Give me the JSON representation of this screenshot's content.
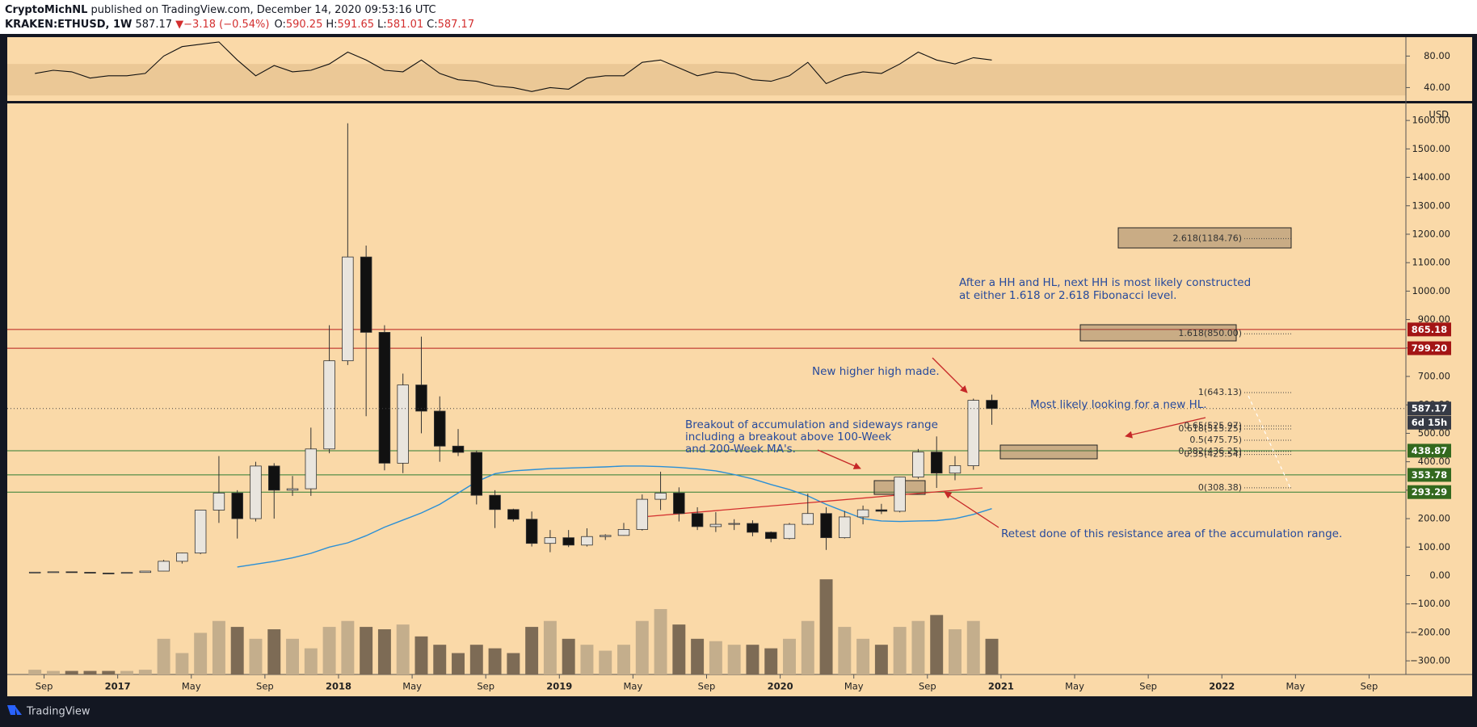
{
  "header": {
    "author": "CryptoMichNL",
    "published": "published on TradingView.com, December 14, 2020 09:53:16 UTC",
    "symbol": "KRAKEN:ETHUSD, 1W",
    "last": "587.17",
    "arrow": "▼",
    "change": "−3.18 (−0.54%)",
    "ohlc": [
      {
        "label": "O:",
        "value": "590.25"
      },
      {
        "label": "H:",
        "value": "591.65"
      },
      {
        "label": "L:",
        "value": "581.01"
      },
      {
        "label": "C:",
        "value": "587.17"
      }
    ]
  },
  "footer": {
    "brand": "TradingView"
  },
  "chart_data": {
    "type": "candlestick",
    "currency": "USD",
    "x": [
      "2016-08",
      "2016-09",
      "2016-10",
      "2016-11",
      "2016-12",
      "2017-01",
      "2017-02",
      "2017-03",
      "2017-04",
      "2017-05",
      "2017-06",
      "2017-07",
      "2017-08",
      "2017-09",
      "2017-10",
      "2017-11",
      "2017-12",
      "2018-01",
      "2018-02",
      "2018-03",
      "2018-04",
      "2018-05",
      "2018-06",
      "2018-07",
      "2018-08",
      "2018-09",
      "2018-10",
      "2018-11",
      "2018-12",
      "2019-01",
      "2019-02",
      "2019-03",
      "2019-04",
      "2019-05",
      "2019-06",
      "2019-07",
      "2019-08",
      "2019-09",
      "2019-10",
      "2019-11",
      "2019-12",
      "2020-01",
      "2020-02",
      "2020-03",
      "2020-04",
      "2020-05",
      "2020-06",
      "2020-07",
      "2020-08",
      "2020-09",
      "2020-10",
      "2020-11",
      "2020-12"
    ],
    "open": [
      11.6,
      11.8,
      13.1,
      11.3,
      8.6,
      8.0,
      10.7,
      15.5,
      50,
      79,
      230,
      290,
      200,
      385,
      300,
      305,
      445,
      755,
      1120,
      855,
      395,
      670,
      578,
      455,
      433,
      282,
      232,
      198,
      113,
      133,
      107,
      137,
      141,
      162,
      268,
      290,
      218,
      172,
      180,
      183,
      152,
      130,
      180,
      218,
      133,
      206,
      231,
      226,
      346,
      434,
      360,
      386,
      616
    ],
    "high": [
      12.5,
      13.5,
      13.3,
      11.4,
      9.0,
      11.2,
      15.5,
      55,
      80,
      230,
      420,
      300,
      400,
      395,
      350,
      520,
      880,
      1590,
      1160,
      880,
      710,
      840,
      630,
      515,
      440,
      300,
      235,
      225,
      160,
      160,
      166,
      145,
      185,
      285,
      365,
      310,
      240,
      223,
      198,
      194,
      155,
      185,
      288,
      240,
      227,
      246,
      252,
      347,
      445,
      489,
      420,
      622,
      636
    ],
    "low": [
      10.0,
      11.5,
      10.5,
      8.2,
      6.7,
      7.9,
      10.4,
      15.2,
      42,
      75,
      185,
      130,
      190,
      200,
      280,
      280,
      430,
      740,
      560,
      370,
      360,
      500,
      400,
      420,
      250,
      167,
      190,
      102,
      82,
      100,
      102,
      125,
      140,
      158,
      230,
      190,
      160,
      153,
      160,
      138,
      117,
      127,
      178,
      90,
      130,
      180,
      216,
      222,
      340,
      308,
      335,
      372,
      530
    ],
    "close": [
      11.8,
      13.1,
      11.3,
      8.6,
      8.0,
      10.7,
      15.5,
      50,
      79,
      230,
      290,
      200,
      385,
      300,
      305,
      445,
      755,
      1120,
      855,
      395,
      670,
      578,
      455,
      433,
      282,
      232,
      198,
      113,
      133,
      107,
      137,
      141,
      162,
      268,
      290,
      218,
      172,
      180,
      183,
      152,
      130,
      180,
      218,
      133,
      206,
      231,
      226,
      346,
      434,
      360,
      386,
      616,
      587.17
    ],
    "up_color": "#e9e5de",
    "down_color": "#111111",
    "volume": {
      "values": [
        4,
        3,
        3,
        3,
        3,
        3,
        4,
        30,
        18,
        35,
        45,
        40,
        30,
        38,
        30,
        22,
        40,
        45,
        40,
        38,
        42,
        32,
        25,
        18,
        25,
        22,
        18,
        40,
        45,
        30,
        25,
        20,
        25,
        45,
        55,
        42,
        30,
        28,
        25,
        25,
        22,
        30,
        45,
        80,
        40,
        30,
        25,
        40,
        45,
        50,
        38,
        45,
        30
      ],
      "lim": [
        0,
        480
      ],
      "up_color": "#c4ae8c",
      "down_color": "#7d6b55"
    },
    "ma": {
      "values": [
        null,
        null,
        null,
        null,
        null,
        null,
        null,
        null,
        null,
        null,
        null,
        30,
        40,
        50,
        62,
        78,
        100,
        115,
        140,
        170,
        195,
        220,
        250,
        290,
        330,
        358,
        368,
        372,
        376,
        378,
        380,
        382,
        385,
        385,
        383,
        380,
        375,
        368,
        355,
        340,
        320,
        302,
        280,
        250,
        225,
        200,
        192,
        190,
        192,
        193,
        200,
        215,
        235
      ],
      "color": "#2a8fd6"
    },
    "rsi": {
      "values": [
        58,
        62,
        60,
        52,
        55,
        55,
        58,
        80,
        92,
        95,
        98,
        75,
        55,
        68,
        60,
        62,
        70,
        85,
        75,
        62,
        60,
        75,
        58,
        50,
        48,
        42,
        40,
        35,
        40,
        38,
        52,
        55,
        55,
        72,
        75,
        65,
        55,
        60,
        58,
        50,
        48,
        55,
        72,
        45,
        55,
        60,
        58,
        70,
        85,
        75,
        70,
        78,
        75
      ],
      "color": "#111111",
      "ylim": [
        23,
        104
      ],
      "yticks": [
        {
          "value": 80,
          "label": "80.00"
        },
        {
          "value": 40,
          "label": "40.00"
        }
      ],
      "band": [
        30,
        70
      ],
      "band_color": "rgba(150,100,40,0.14)"
    },
    "xlim": [
      "2016-07",
      "2022-10"
    ],
    "xticks": [
      {
        "value": "2016-09",
        "label": "Sep"
      },
      {
        "value": "2017-01",
        "label": "2017"
      },
      {
        "value": "2017-05",
        "label": "May"
      },
      {
        "value": "2017-09",
        "label": "Sep"
      },
      {
        "value": "2018-01",
        "label": "2018"
      },
      {
        "value": "2018-05",
        "label": "May"
      },
      {
        "value": "2018-09",
        "label": "Sep"
      },
      {
        "value": "2019-01",
        "label": "2019"
      },
      {
        "value": "2019-05",
        "label": "May"
      },
      {
        "value": "2019-09",
        "label": "Sep"
      },
      {
        "value": "2020-01",
        "label": "2020"
      },
      {
        "value": "2020-05",
        "label": "May"
      },
      {
        "value": "2020-09",
        "label": "Sep"
      },
      {
        "value": "2021-01",
        "label": "2021"
      },
      {
        "value": "2021-05",
        "label": "May"
      },
      {
        "value": "2021-09",
        "label": "Sep"
      },
      {
        "value": "2022-01",
        "label": "2022"
      },
      {
        "value": "2022-05",
        "label": "May"
      },
      {
        "value": "2022-09",
        "label": "Sep"
      }
    ],
    "ylim": [
      -348,
      1660
    ],
    "yticks": [
      {
        "value": 1600,
        "label": "1600.00"
      },
      {
        "value": 1500,
        "label": "1500.00"
      },
      {
        "value": 1400,
        "label": "1400.00"
      },
      {
        "value": 1300,
        "label": "1300.00"
      },
      {
        "value": 1200,
        "label": "1200.00"
      },
      {
        "value": 1100,
        "label": "1100.00"
      },
      {
        "value": 1000,
        "label": "1000.00"
      },
      {
        "value": 900,
        "label": "900.00"
      },
      {
        "value": 800,
        "label": "800.00"
      },
      {
        "value": 700,
        "label": "700.00"
      },
      {
        "value": 600,
        "label": "600.00"
      },
      {
        "value": 500,
        "label": "500.00"
      },
      {
        "value": 400,
        "label": "400.00"
      },
      {
        "value": 300,
        "label": "300.00"
      },
      {
        "value": 200,
        "label": "200.00"
      },
      {
        "value": 100,
        "label": "100.00"
      },
      {
        "value": 0,
        "label": "0.00"
      },
      {
        "value": -100,
        "label": "−100.00"
      },
      {
        "value": -200,
        "label": "−200.00"
      },
      {
        "value": -300,
        "label": "−300.00"
      }
    ],
    "levels": [
      {
        "value": 865.18,
        "color": "#b71c1c"
      },
      {
        "value": 799.2,
        "label": "799.20",
        "color": "#b71c1c"
      },
      {
        "value": 438.87,
        "color": "#2e7d32"
      },
      {
        "value": 353.78,
        "color": "#2e7d32"
      },
      {
        "value": 293.29,
        "color": "#2e7d32"
      }
    ],
    "last": {
      "value": 587.17,
      "countdown": "6d 15h",
      "color": "#363a45"
    },
    "fib": [
      {
        "value": 1184.76,
        "label": "2.618(1184.76)"
      },
      {
        "value": 850,
        "label": "1.618(850.00)"
      },
      {
        "value": 643.13,
        "label": "1(643.13)"
      },
      {
        "value": 525.97,
        "label": "0.65(525.97)"
      },
      {
        "value": 515.25,
        "label": "0.618(515.25)"
      },
      {
        "value": 475.75,
        "label": "0.5(475.75)"
      },
      {
        "value": 436.25,
        "label": "0.382(436.25)"
      },
      {
        "value": 425.54,
        "label": "0.35(425.54)"
      },
      {
        "value": 308.38,
        "label": "0(308.38)"
      }
    ],
    "annotations": [
      "After a HH and HL, next HH is most likely constructed",
      "at either 1.618 or 2.618 Fibonacci level.",
      "New higher high made.",
      "Most likely looking for a new HL.",
      "Breakout of accumulation and sideways range",
      "including a breakout above 100-Week",
      "and 200-Week MA's.",
      "Retest done of this resistance area of the accumulation range."
    ]
  }
}
